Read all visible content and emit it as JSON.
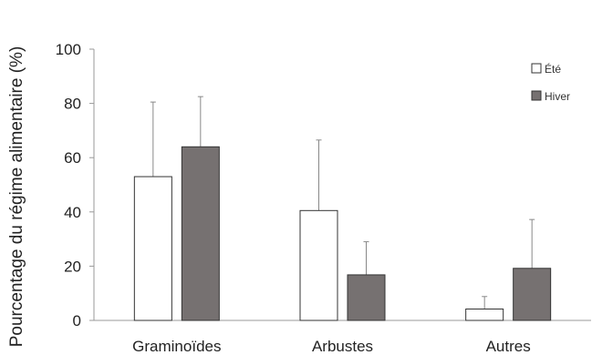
{
  "chart_data": {
    "type": "bar",
    "title": "",
    "xlabel": "",
    "ylabel": "Pourcentage du régime alimentaire (%)",
    "ylim": [
      0,
      100
    ],
    "yticks": [
      0,
      20,
      40,
      60,
      80,
      100
    ],
    "categories": [
      "Graminoïdes",
      "Arbustes",
      "Autres"
    ],
    "series": [
      {
        "name": "Été",
        "values": [
          53,
          40.5,
          4.2
        ],
        "error_upper": [
          80.5,
          66.5,
          8.8
        ],
        "color": "#ffffff"
      },
      {
        "name": "Hiver",
        "values": [
          64,
          16.8,
          19.2
        ],
        "error_upper": [
          82.5,
          29,
          37.2
        ],
        "color": "#767171"
      }
    ],
    "grid": false,
    "legend_position": "top-right"
  }
}
